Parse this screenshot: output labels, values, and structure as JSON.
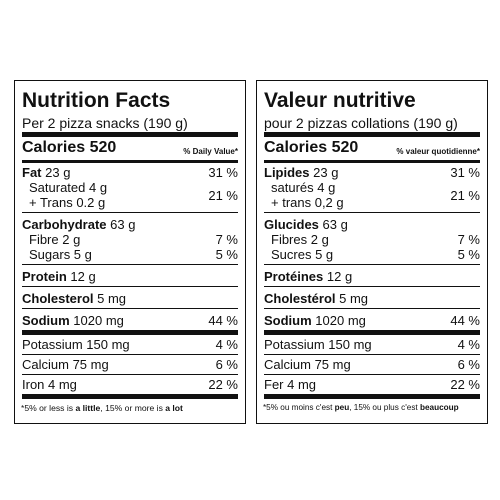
{
  "panels": [
    {
      "title": "Nutrition Facts",
      "serving": "Per 2 pizza snacks (190 g)",
      "calories_label": "Calories",
      "calories": "520",
      "dv_header": "% Daily Value*",
      "groups": [
        {
          "name": "Fat",
          "amount": "23 g",
          "dv": "31 %",
          "details": [
            {
              "text": "Saturated 4 g"
            },
            {
              "text": "+ Trans 0.2 g"
            }
          ],
          "details_dv": "21 %"
        },
        {
          "name": "Carbohydrate",
          "amount": "63 g",
          "details": [
            {
              "text": "Fibre 2 g",
              "dv": "7 %"
            },
            {
              "text": "Sugars 5 g",
              "dv": "5 %"
            }
          ]
        },
        {
          "name": "Protein",
          "amount": "12 g"
        },
        {
          "name": "Cholesterol",
          "amount": "5 mg"
        },
        {
          "name": "Sodium",
          "amount": "1020 mg",
          "dv": "44 %"
        }
      ],
      "minerals": [
        {
          "text": "Potassium 150 mg",
          "dv": "4 %"
        },
        {
          "text": "Calcium 75 mg",
          "dv": "6 %"
        },
        {
          "text": "Iron 4 mg",
          "dv": "22 %"
        }
      ],
      "footnote": [
        "*5% or less is ",
        "a little",
        ", 15% or more is ",
        "a lot"
      ]
    },
    {
      "title": "Valeur nutritive",
      "serving": "pour 2 pizzas collations (190 g)",
      "calories_label": "Calories",
      "calories": "520",
      "dv_header": "% valeur quotidienne*",
      "groups": [
        {
          "name": "Lipides",
          "amount": "23 g",
          "dv": "31 %",
          "details": [
            {
              "text": "saturés 4 g"
            },
            {
              "text": "+ trans 0,2 g"
            }
          ],
          "details_dv": "21 %"
        },
        {
          "name": "Glucides",
          "amount": "63 g",
          "details": [
            {
              "text": "Fibres 2 g",
              "dv": "7 %"
            },
            {
              "text": "Sucres 5 g",
              "dv": "5 %"
            }
          ]
        },
        {
          "name": "Protéines",
          "amount": "12 g"
        },
        {
          "name": "Cholestérol",
          "amount": "5 mg"
        },
        {
          "name": "Sodium",
          "amount": "1020 mg",
          "dv": "44 %"
        }
      ],
      "minerals": [
        {
          "text": "Potassium 150 mg",
          "dv": "4 %"
        },
        {
          "text": "Calcium 75 mg",
          "dv": "6 %"
        },
        {
          "text": "Fer 4 mg",
          "dv": "22 %"
        }
      ],
      "footnote": [
        "*5% ou moins c'est ",
        "peu",
        ", 15% ou plus c'est ",
        "beaucoup"
      ]
    }
  ]
}
